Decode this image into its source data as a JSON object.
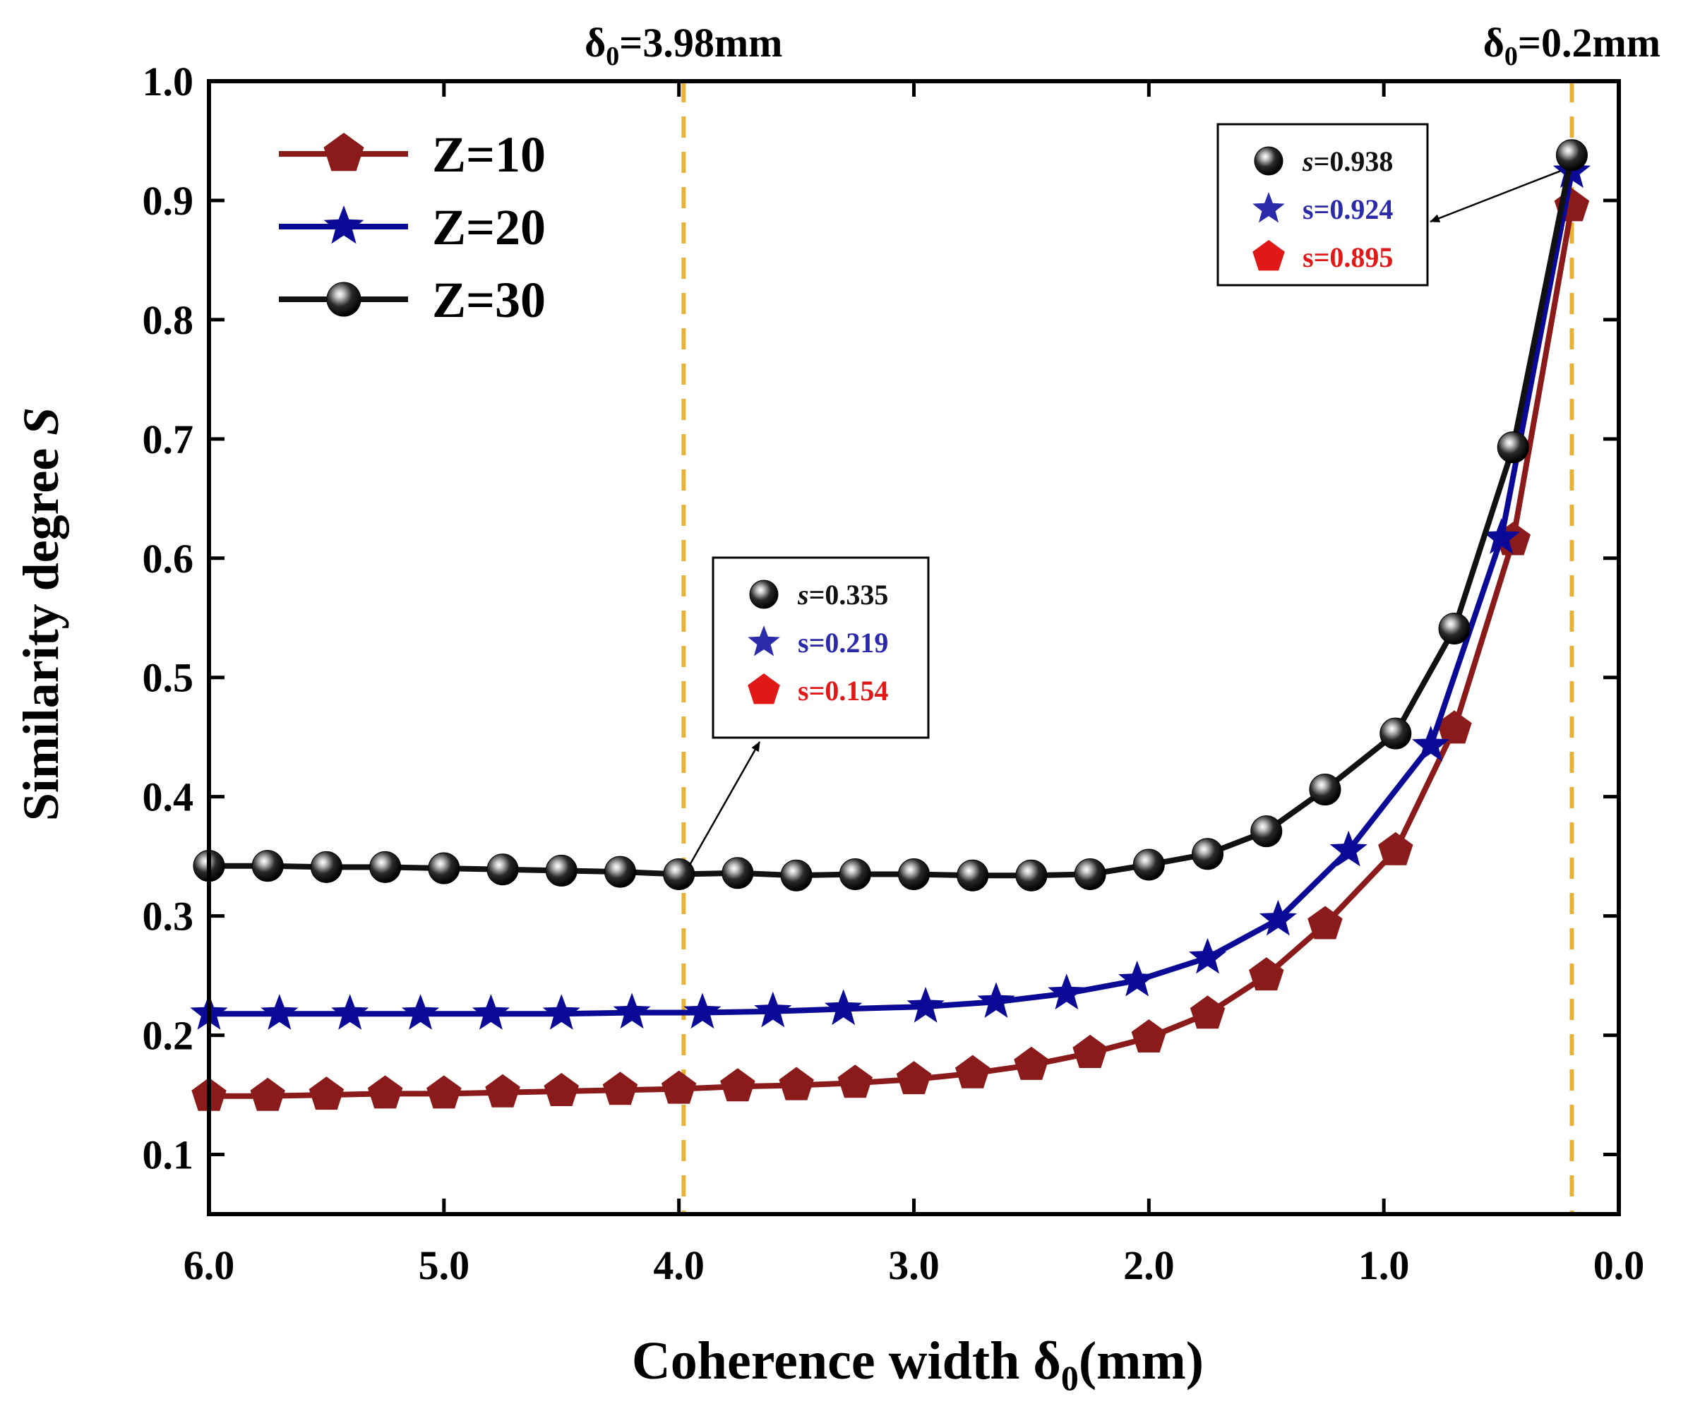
{
  "chart_data": {
    "type": "line",
    "xlabel": "Coherence width  δ",
    "xlabel_sub": "0",
    "xlabel_unit": "(mm)",
    "ylabel": "Similarity degree ",
    "ylabel_var": "S",
    "xlim": [
      6.0,
      0.0
    ],
    "ylim": [
      0.05,
      1.0
    ],
    "x_reversed": true,
    "xticks": [
      6.0,
      5.0,
      4.0,
      3.0,
      2.0,
      1.0,
      0.0
    ],
    "xtick_labels": [
      "6.0",
      "5.0",
      "4.0",
      "3.0",
      "2.0",
      "1.0",
      "0.0"
    ],
    "yticks": [
      0.1,
      0.2,
      0.3,
      0.4,
      0.5,
      0.6,
      0.7,
      0.8,
      0.9,
      1.0
    ],
    "ytick_labels": [
      "0.1",
      "0.2",
      "0.3",
      "0.4",
      "0.5",
      "0.6",
      "0.7",
      "0.8",
      "0.9",
      "1.0"
    ],
    "legend_position": "top-left",
    "vlines": [
      {
        "x": 3.98,
        "label_prefix": "δ",
        "label_sub": "0",
        "label_suffix": "=3.98mm"
      },
      {
        "x": 0.2,
        "label_prefix": "δ",
        "label_sub": "0",
        "label_suffix": "=0.2mm"
      }
    ],
    "vline_color": "#E8B23A",
    "series": [
      {
        "name": "Z=10",
        "marker": "pentagon",
        "color": "#8B1A1A",
        "x": [
          6.0,
          5.75,
          5.5,
          5.25,
          5.0,
          4.75,
          4.5,
          4.25,
          4.0,
          3.75,
          3.5,
          3.25,
          3.0,
          2.75,
          2.5,
          2.25,
          2.0,
          1.75,
          1.5,
          1.25,
          0.95,
          0.7,
          0.45,
          0.2
        ],
        "values": [
          0.149,
          0.149,
          0.15,
          0.151,
          0.151,
          0.152,
          0.153,
          0.154,
          0.155,
          0.157,
          0.158,
          0.16,
          0.163,
          0.168,
          0.175,
          0.185,
          0.198,
          0.218,
          0.25,
          0.293,
          0.355,
          0.457,
          0.615,
          0.895
        ]
      },
      {
        "name": "Z=20",
        "marker": "star",
        "color": "#0A0A96",
        "x": [
          6.0,
          5.7,
          5.4,
          5.1,
          4.8,
          4.5,
          4.2,
          3.9,
          3.6,
          3.3,
          2.95,
          2.65,
          2.35,
          2.05,
          1.75,
          1.45,
          1.15,
          0.8,
          0.5,
          0.2
        ],
        "values": [
          0.218,
          0.218,
          0.218,
          0.218,
          0.218,
          0.218,
          0.219,
          0.219,
          0.22,
          0.222,
          0.224,
          0.228,
          0.235,
          0.246,
          0.265,
          0.297,
          0.355,
          0.443,
          0.617,
          0.924
        ]
      },
      {
        "name": "Z=30",
        "marker": "sphere",
        "color": "#111111",
        "x": [
          6.0,
          5.75,
          5.5,
          5.25,
          5.0,
          4.75,
          4.5,
          4.25,
          4.0,
          3.75,
          3.5,
          3.25,
          3.0,
          2.75,
          2.5,
          2.25,
          2.0,
          1.75,
          1.5,
          1.25,
          0.95,
          0.7,
          0.45,
          0.2
        ],
        "values": [
          0.342,
          0.342,
          0.341,
          0.341,
          0.34,
          0.339,
          0.338,
          0.337,
          0.335,
          0.336,
          0.334,
          0.335,
          0.335,
          0.334,
          0.334,
          0.335,
          0.343,
          0.352,
          0.371,
          0.406,
          0.453,
          0.541,
          0.693,
          0.938
        ]
      }
    ],
    "annotations": [
      {
        "target_x": 3.98,
        "target_y": 0.335,
        "entries": [
          {
            "marker": "sphere",
            "var": "s",
            "text": "=0.335",
            "color": "#111111"
          },
          {
            "marker": "star",
            "var": "",
            "text": "s=0.219",
            "color": "#2A2AAA"
          },
          {
            "marker": "pentagon",
            "var": "",
            "text": "s=0.154",
            "color": "#E01818"
          }
        ]
      },
      {
        "target_x": 0.2,
        "target_y": 0.92,
        "entries": [
          {
            "marker": "sphere",
            "var": "s",
            "text": "=0.938",
            "color": "#111111"
          },
          {
            "marker": "star",
            "var": "",
            "text": "s=0.924",
            "color": "#2A2AAA"
          },
          {
            "marker": "pentagon",
            "var": "",
            "text": "s=0.895",
            "color": "#E01818"
          }
        ]
      }
    ]
  }
}
